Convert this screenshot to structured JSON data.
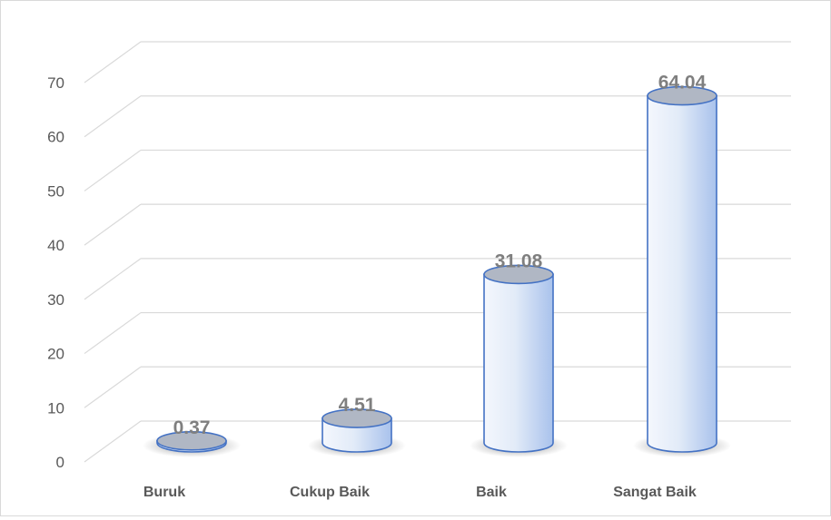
{
  "chart_data": {
    "type": "bar",
    "title": "",
    "xlabel": "",
    "ylabel": "",
    "categories": [
      "Buruk",
      "Cukup Baik",
      "Baik",
      "Sangat Baik"
    ],
    "values": [
      0.37,
      4.51,
      31.08,
      64.04
    ],
    "data_labels": [
      "0.37",
      "4.51",
      "31.08",
      "64.04"
    ],
    "ylim": [
      0,
      70
    ],
    "yticks": [
      "0",
      "10",
      "20",
      "30",
      "40",
      "50",
      "60",
      "70"
    ],
    "grid": true,
    "legend": "none",
    "colors": {
      "bar_light": "#f4f7fd",
      "bar_dark": "#a9c2ec",
      "bar_outline": "#4472c4",
      "top_face": "#b0b7c4",
      "grid": "#d9d9d9",
      "label": "#7f7f7f",
      "axis_text": "#595959"
    }
  }
}
